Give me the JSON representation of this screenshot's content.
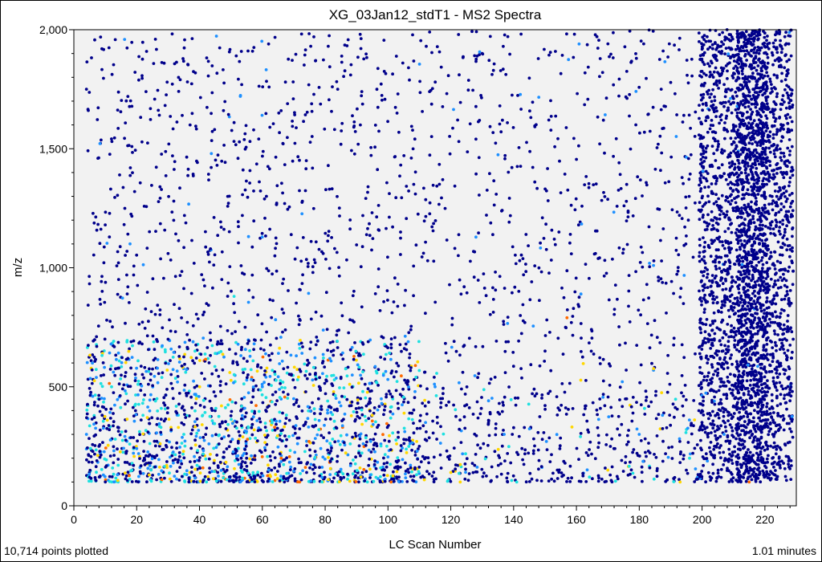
{
  "chart_data": {
    "type": "scatter",
    "title": "XG_03Jan12_stdT1 - MS2 Spectra",
    "xlabel": "LC Scan Number",
    "ylabel": "m/z",
    "xlim": [
      0,
      230
    ],
    "ylim": [
      0,
      2000
    ],
    "x_ticks": [
      0,
      20,
      40,
      60,
      80,
      100,
      120,
      140,
      160,
      180,
      200,
      220
    ],
    "y_ticks": [
      0,
      500,
      1000,
      1500,
      2000
    ],
    "y_tick_labels": [
      "0",
      "500",
      "1,000",
      "1,500",
      "2,000"
    ],
    "grid": false,
    "background": "#f2f2f2",
    "colors": {
      "dominant": "#00008b",
      "medium": "#1e90ff",
      "cyan": "#1ee0e0",
      "high": "#ffd700",
      "highest": "#ff6a00"
    },
    "point_count": 10714,
    "points_sample": [
      [
        4,
        300,
        1
      ],
      [
        4,
        1750,
        0
      ],
      [
        5,
        120,
        0
      ],
      [
        6,
        460,
        1
      ],
      [
        8,
        250,
        0
      ],
      [
        10,
        1180,
        0
      ],
      [
        12,
        500,
        2
      ],
      [
        14,
        330,
        0
      ],
      [
        18,
        1420,
        0
      ],
      [
        20,
        240,
        1
      ],
      [
        22,
        380,
        2
      ],
      [
        24,
        130,
        3
      ],
      [
        26,
        440,
        2
      ],
      [
        28,
        110,
        4
      ],
      [
        30,
        700,
        0
      ],
      [
        33,
        520,
        1
      ],
      [
        35,
        300,
        2
      ],
      [
        37,
        1600,
        0
      ],
      [
        39,
        450,
        3
      ],
      [
        41,
        380,
        2
      ],
      [
        43,
        260,
        1
      ],
      [
        45,
        640,
        2
      ],
      [
        47,
        420,
        3
      ],
      [
        49,
        1300,
        0
      ],
      [
        51,
        880,
        2
      ],
      [
        53,
        1720,
        1
      ],
      [
        55,
        200,
        0
      ],
      [
        60,
        500,
        1
      ],
      [
        63,
        360,
        2
      ],
      [
        64,
        1050,
        0
      ],
      [
        66,
        200,
        4
      ],
      [
        70,
        450,
        1
      ],
      [
        74,
        1450,
        0
      ],
      [
        78,
        320,
        2
      ],
      [
        81,
        110,
        3
      ],
      [
        85,
        420,
        1
      ],
      [
        88,
        260,
        2
      ],
      [
        92,
        480,
        2
      ],
      [
        95,
        380,
        3
      ],
      [
        98,
        430,
        1
      ],
      [
        101,
        100,
        4
      ],
      [
        104,
        1150,
        0
      ],
      [
        110,
        250,
        0
      ],
      [
        115,
        500,
        1
      ],
      [
        120,
        140,
        3
      ],
      [
        123,
        100,
        3
      ],
      [
        130,
        1900,
        0
      ],
      [
        137,
        300,
        1
      ],
      [
        141,
        100,
        2
      ],
      [
        150,
        650,
        0
      ],
      [
        157,
        790,
        4
      ],
      [
        163,
        420,
        0
      ],
      [
        170,
        150,
        3
      ],
      [
        176,
        1350,
        0
      ],
      [
        180,
        300,
        1
      ],
      [
        187,
        1750,
        0
      ],
      [
        193,
        100,
        3
      ],
      [
        196,
        200,
        2
      ],
      [
        200,
        400,
        0
      ],
      [
        203,
        1200,
        0
      ],
      [
        207,
        300,
        1
      ],
      [
        210,
        1600,
        0
      ],
      [
        213,
        800,
        0
      ],
      [
        215,
        100,
        4
      ],
      [
        217,
        1990,
        0
      ],
      [
        218,
        500,
        0
      ],
      [
        220,
        1100,
        0
      ],
      [
        223,
        300,
        0
      ],
      [
        226,
        1400,
        0
      ],
      [
        229,
        700,
        0
      ]
    ]
  },
  "footer": {
    "left": "10,714 points plotted",
    "right": "1.01 minutes"
  }
}
